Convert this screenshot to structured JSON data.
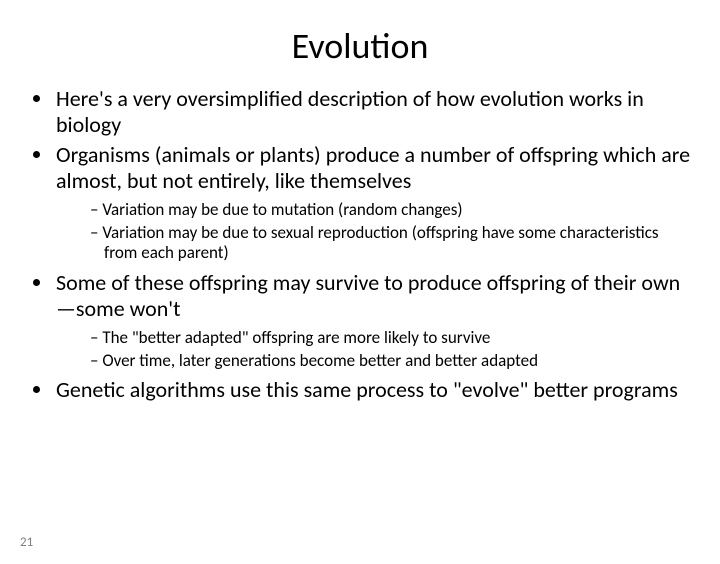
{
  "title": "Evolution",
  "bullets": [
    {
      "text": "Here's a very oversimplified description of how evolution works in biology"
    },
    {
      "text": "Organisms (animals or plants) produce a number of offspring which are almost, but not entirely, like themselves",
      "sub": [
        "Variation may be due to mutation (random changes)",
        "Variation may be due to sexual reproduction (offspring have some characteristics from each parent)"
      ]
    },
    {
      "text": "Some of these offspring may survive to produce offspring of their own—some won't",
      "sub": [
        "The \"better adapted\" offspring are more likely to survive",
        "Over time, later generations become better and better adapted"
      ]
    },
    {
      "text": "Genetic algorithms use this same process to \"evolve\" better programs"
    }
  ],
  "page_number": "21"
}
